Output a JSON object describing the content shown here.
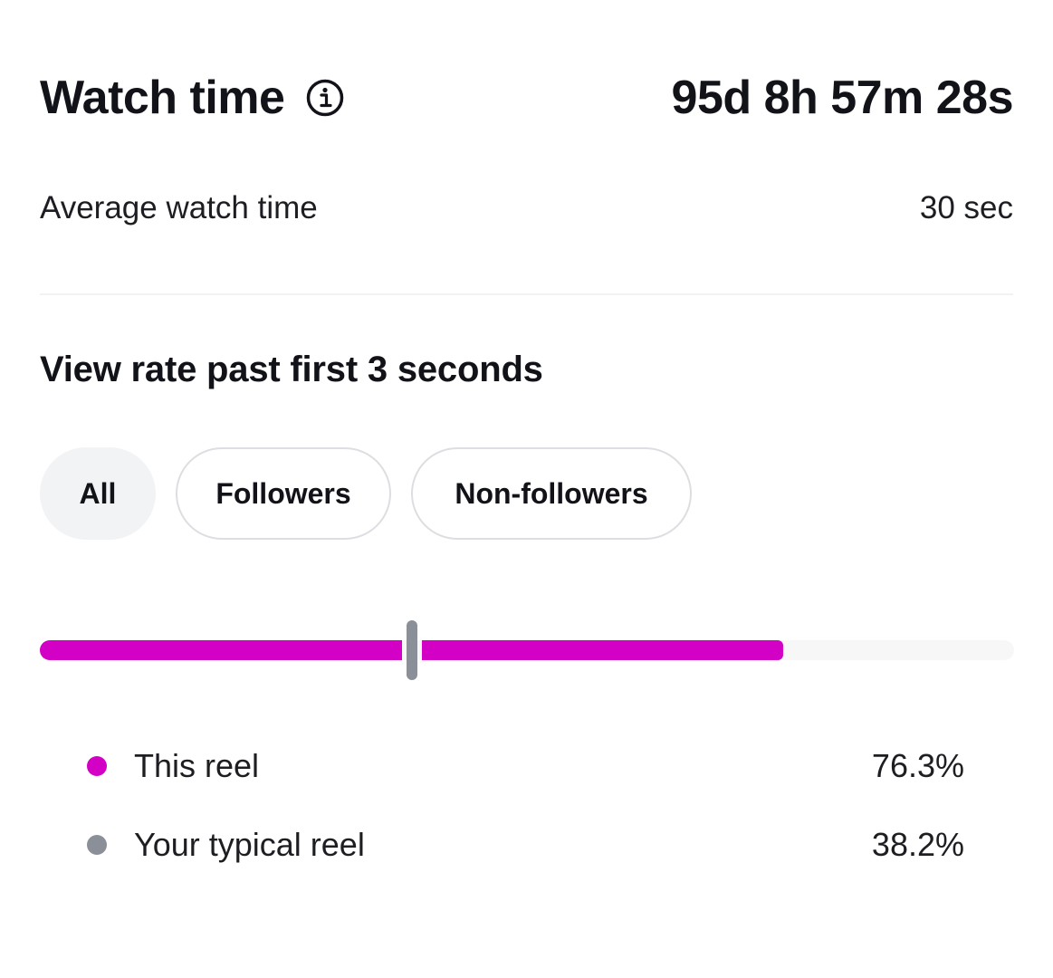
{
  "watch_time": {
    "title": "Watch time",
    "total": "95d 8h 57m 28s",
    "info_icon": "info-icon"
  },
  "average": {
    "label": "Average watch time",
    "value": "30 sec"
  },
  "view_rate": {
    "title": "View rate past first 3 seconds",
    "filters": [
      {
        "label": "All",
        "selected": true
      },
      {
        "label": "Followers",
        "selected": false
      },
      {
        "label": "Non-followers",
        "selected": false
      }
    ],
    "this_reel_fraction": 0.763,
    "typical_reel_fraction": 0.382,
    "legend": [
      {
        "label": "This reel",
        "value": "76.3%",
        "color": "#d300c5"
      },
      {
        "label": "Your typical reel",
        "value": "38.2%",
        "color": "#8b8f98"
      }
    ]
  }
}
